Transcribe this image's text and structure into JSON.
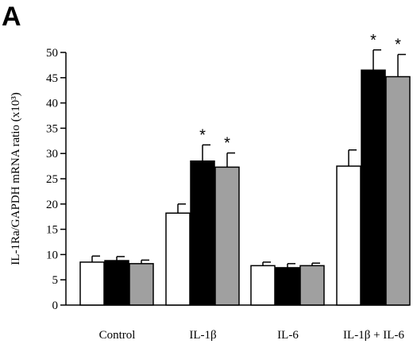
{
  "panel_label": "A",
  "chart_data": {
    "type": "bar",
    "title": "",
    "ylabel": "IL-1Ra/GAPDH mRNA ratio (x10³)",
    "xlabel": "",
    "ylim": [
      0,
      50
    ],
    "yticks": [
      0,
      5,
      10,
      15,
      20,
      25,
      30,
      35,
      40,
      45,
      50
    ],
    "categories": [
      "Control",
      "IL-1β",
      "IL-6",
      "IL-1β + IL-6"
    ],
    "series": [
      {
        "color": "#ffffff",
        "values": [
          8.5,
          18.2,
          7.8,
          27.5
        ],
        "errors": [
          1.2,
          1.8,
          0.7,
          3.2
        ]
      },
      {
        "color": "#000000",
        "values": [
          8.8,
          28.5,
          7.4,
          46.5
        ],
        "errors": [
          0.8,
          3.2,
          0.8,
          4.0
        ]
      },
      {
        "color": "#a0a0a0",
        "values": [
          8.2,
          27.3,
          7.8,
          45.2
        ],
        "errors": [
          0.7,
          2.8,
          0.5,
          4.4
        ]
      }
    ],
    "significance": [
      {
        "category": 1,
        "series": 1,
        "mark": "*"
      },
      {
        "category": 1,
        "series": 2,
        "mark": "*"
      },
      {
        "category": 3,
        "series": 1,
        "mark": "*"
      },
      {
        "category": 3,
        "series": 2,
        "mark": "*"
      }
    ]
  }
}
